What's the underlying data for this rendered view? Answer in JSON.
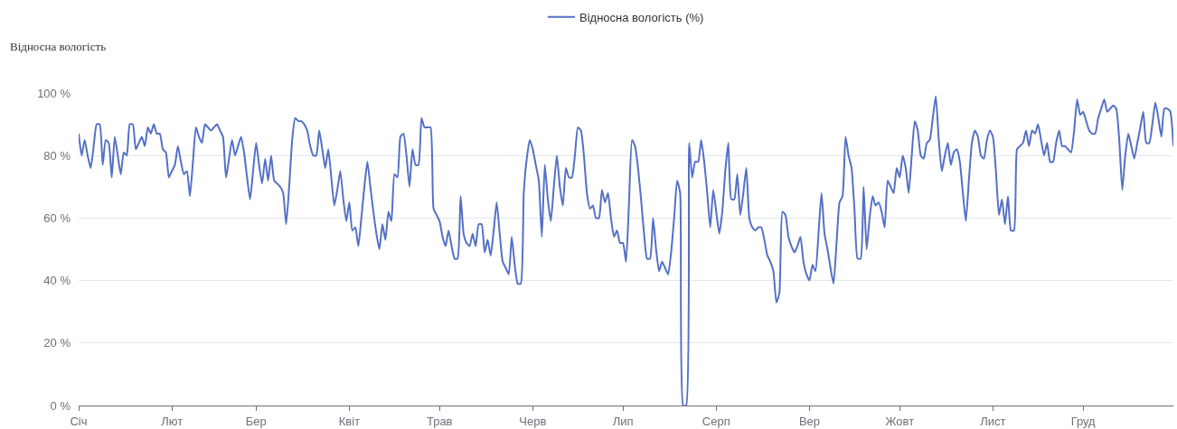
{
  "chart_data": {
    "type": "line",
    "ylabel": "Відносна вологість",
    "legend": "top",
    "grid": "y",
    "line_style": "solid",
    "categories": [
      "Січ",
      null,
      null,
      null,
      null,
      null,
      null,
      null,
      null,
      null,
      null,
      null,
      null,
      null,
      null,
      null,
      null,
      null,
      null,
      null,
      null,
      null,
      null,
      null,
      null,
      null,
      null,
      null,
      null,
      null,
      null,
      "Лют",
      null,
      null,
      null,
      null,
      null,
      null,
      null,
      null,
      null,
      null,
      null,
      null,
      null,
      null,
      null,
      null,
      null,
      null,
      null,
      null,
      null,
      null,
      null,
      null,
      null,
      null,
      null,
      "Бер",
      null,
      null,
      null,
      null,
      null,
      null,
      null,
      null,
      null,
      null,
      null,
      null,
      null,
      null,
      null,
      null,
      null,
      null,
      null,
      null,
      null,
      null,
      null,
      null,
      null,
      null,
      null,
      null,
      null,
      null,
      "Квіт",
      null,
      null,
      null,
      null,
      null,
      null,
      null,
      null,
      null,
      null,
      null,
      null,
      null,
      null,
      null,
      null,
      null,
      null,
      null,
      null,
      null,
      null,
      null,
      null,
      null,
      null,
      null,
      null,
      null,
      "Трав",
      null,
      null,
      null,
      null,
      null,
      null,
      null,
      null,
      null,
      null,
      null,
      null,
      null,
      null,
      null,
      null,
      null,
      null,
      null,
      null,
      null,
      null,
      null,
      null,
      null,
      null,
      null,
      null,
      null,
      null,
      "Черв",
      null,
      null,
      null,
      null,
      null,
      null,
      null,
      null,
      null,
      null,
      null,
      null,
      null,
      null,
      null,
      null,
      null,
      null,
      null,
      null,
      null,
      null,
      null,
      null,
      null,
      null,
      null,
      null,
      null,
      "Лип",
      null,
      null,
      null,
      null,
      null,
      null,
      null,
      null,
      null,
      null,
      null,
      null,
      null,
      null,
      null,
      null,
      null,
      null,
      null,
      null,
      null,
      null,
      null,
      null,
      null,
      null,
      null,
      null,
      null,
      null,
      "Серп",
      null,
      null,
      null,
      null,
      null,
      null,
      null,
      null,
      null,
      null,
      null,
      null,
      null,
      null,
      null,
      null,
      null,
      null,
      null,
      null,
      null,
      null,
      null,
      null,
      null,
      null,
      null,
      null,
      null,
      null,
      "Вер",
      null,
      null,
      null,
      null,
      null,
      null,
      null,
      null,
      null,
      null,
      null,
      null,
      null,
      null,
      null,
      null,
      null,
      null,
      null,
      null,
      null,
      null,
      null,
      null,
      null,
      null,
      null,
      null,
      null,
      "Жовт",
      null,
      null,
      null,
      null,
      null,
      null,
      null,
      null,
      null,
      null,
      null,
      null,
      null,
      null,
      null,
      null,
      null,
      null,
      null,
      null,
      null,
      null,
      null,
      null,
      null,
      null,
      null,
      null,
      null,
      null,
      "Лист",
      null,
      null,
      null,
      null,
      null,
      null,
      null,
      null,
      null,
      null,
      null,
      null,
      null,
      null,
      null,
      null,
      null,
      null,
      null,
      null,
      null,
      null,
      null,
      null,
      null,
      null,
      null,
      null,
      null,
      "Груд",
      null,
      null,
      null,
      null,
      null,
      null,
      null,
      null,
      null,
      null,
      null,
      null,
      null,
      null,
      null,
      null,
      null,
      null,
      null,
      null,
      null,
      null,
      null,
      null,
      null,
      null,
      null,
      null,
      null,
      null
    ],
    "ylim": [
      0,
      100
    ],
    "yticks": [
      {
        "value": 0,
        "label": "0 %"
      },
      {
        "value": 20,
        "label": "20 %"
      },
      {
        "value": 40,
        "label": "40 %"
      },
      {
        "value": 60,
        "label": "60 %"
      },
      {
        "value": 80,
        "label": "80 %"
      },
      {
        "value": 100,
        "label": "100 %"
      }
    ],
    "series": [
      {
        "name": "Відносна вологість (%)",
        "color": "#5470c6",
        "values": [
          87,
          80,
          85,
          80,
          76,
          83,
          90,
          90,
          77,
          85,
          84,
          73,
          86,
          80,
          74,
          81,
          80,
          90,
          90,
          82,
          84,
          86,
          83,
          89,
          87,
          90,
          87,
          87,
          82,
          81,
          73,
          75,
          77,
          83,
          78,
          74,
          75,
          67,
          78,
          89,
          86,
          84,
          90,
          89,
          88,
          89,
          90,
          88,
          86,
          73,
          79,
          85,
          80,
          83,
          86,
          81,
          73,
          66,
          75,
          84,
          77,
          71,
          79,
          72,
          80,
          72,
          71,
          70,
          68,
          58,
          70,
          85,
          92,
          91,
          91,
          90,
          88,
          83,
          80,
          80,
          88,
          82,
          76,
          82,
          73,
          64,
          69,
          75,
          66,
          59,
          65,
          56,
          57,
          51,
          60,
          70,
          78,
          70,
          62,
          55,
          50,
          58,
          53,
          62,
          59,
          74,
          73,
          86,
          87,
          80,
          70,
          82,
          77,
          77,
          92,
          89,
          89,
          89,
          63,
          61,
          59,
          54,
          51,
          56,
          51,
          47,
          47,
          67,
          55,
          52,
          51,
          55,
          51,
          58,
          58,
          49,
          53,
          48,
          56,
          65,
          55,
          46,
          44,
          42,
          54,
          45,
          39,
          39,
          68,
          79,
          85,
          82,
          77,
          72,
          54,
          77,
          66,
          59,
          70,
          80,
          70,
          64,
          76,
          73,
          73,
          80,
          89,
          88,
          80,
          68,
          63,
          64,
          60,
          60,
          69,
          65,
          68,
          60,
          54,
          56,
          52,
          52,
          46,
          65,
          85,
          83,
          76,
          66,
          55,
          47,
          47,
          60,
          50,
          43,
          46,
          44,
          42,
          49,
          60,
          72,
          68,
          0,
          0,
          84,
          73,
          78,
          78,
          85,
          78,
          68,
          57,
          69,
          62,
          55,
          62,
          75,
          84,
          66,
          66,
          74,
          61,
          68,
          76,
          60,
          57,
          56,
          57,
          57,
          53,
          48,
          46,
          43,
          33,
          36,
          62,
          61,
          54,
          51,
          49,
          51,
          54,
          46,
          42,
          40,
          45,
          43,
          55,
          68,
          55,
          50,
          44,
          39,
          52,
          65,
          67,
          86,
          80,
          76,
          62,
          47,
          47,
          70,
          50,
          60,
          67,
          64,
          65,
          62,
          57,
          72,
          70,
          68,
          76,
          73,
          80,
          76,
          68,
          80,
          91,
          88,
          80,
          79,
          84,
          85,
          92,
          99,
          85,
          75,
          80,
          84,
          77,
          81,
          82,
          78,
          68,
          59,
          72,
          84,
          88,
          86,
          80,
          79,
          85,
          88,
          86,
          75,
          61,
          66,
          58,
          67,
          56,
          56,
          82,
          83,
          84,
          88,
          83,
          88,
          87,
          90,
          85,
          80,
          84,
          78,
          78,
          84,
          88,
          83,
          83,
          82,
          81,
          88,
          98,
          93,
          94,
          91,
          88,
          87,
          87,
          92,
          95,
          98,
          94,
          95,
          96,
          95,
          85,
          69,
          80,
          87,
          83,
          79,
          84,
          89,
          94,
          84,
          84,
          90,
          97,
          92,
          86,
          95,
          95,
          94,
          83
        ]
      }
    ]
  }
}
